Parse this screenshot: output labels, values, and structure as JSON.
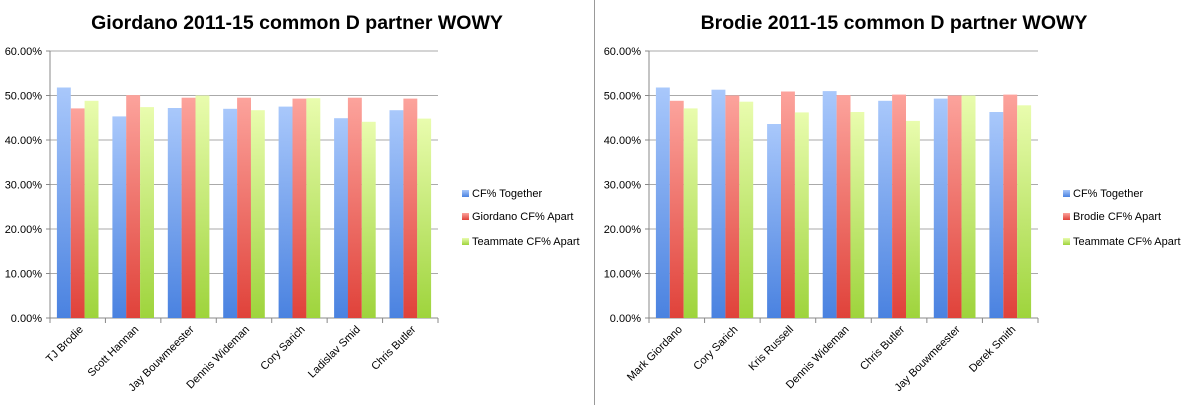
{
  "chart_data": [
    {
      "type": "bar",
      "title": "Giordano 2011-15 common D partner WOWY",
      "categories": [
        "TJ Brodie",
        "Scott Hannan",
        "Jay Bouwmeester",
        "Dennis Wideman",
        "Cory Sarich",
        "Ladislav Smid",
        "Chris Butler"
      ],
      "series": [
        {
          "name": "CF% Together",
          "values": [
            51.8,
            45.3,
            47.2,
            47.0,
            47.5,
            44.9,
            46.7
          ]
        },
        {
          "name": "Giordano CF% Apart",
          "values": [
            47.1,
            50.1,
            49.5,
            49.5,
            49.3,
            49.5,
            49.3
          ]
        },
        {
          "name": "Teammate CF% Apart",
          "values": [
            48.8,
            47.4,
            50.0,
            46.7,
            49.4,
            44.1,
            44.8
          ]
        }
      ],
      "ylim": [
        0,
        60
      ],
      "yticks": [
        "0.00%",
        "10.00%",
        "20.00%",
        "30.00%",
        "40.00%",
        "50.00%",
        "60.00%"
      ],
      "grid": true,
      "legend": "right"
    },
    {
      "type": "bar",
      "title": "Brodie 2011-15 common D partner WOWY",
      "categories": [
        "Mark Giordano",
        "Cory Sarich",
        "Kris Russell",
        "Dennis Wideman",
        "Chris Butler",
        "Jay Bouwmeester",
        "Derek Smith"
      ],
      "series": [
        {
          "name": "CF% Together",
          "values": [
            51.8,
            51.3,
            43.6,
            51.0,
            48.8,
            49.3,
            46.3
          ]
        },
        {
          "name": "Brodie CF% Apart",
          "values": [
            48.8,
            50.0,
            50.9,
            50.1,
            50.2,
            50.0,
            50.2
          ]
        },
        {
          "name": "Teammate CF% Apart",
          "values": [
            47.1,
            48.6,
            46.2,
            46.3,
            44.3,
            50.0,
            47.8
          ]
        }
      ],
      "ylim": [
        0,
        60
      ],
      "yticks": [
        "0.00%",
        "10.00%",
        "20.00%",
        "30.00%",
        "40.00%",
        "50.00%",
        "60.00%"
      ],
      "grid": true,
      "legend": "right"
    }
  ],
  "colors": {
    "series": [
      {
        "top": "#a9c8fb",
        "bottom": "#4a82e0"
      },
      {
        "top": "#fca39c",
        "bottom": "#e0423a"
      },
      {
        "top": "#e9fcae",
        "bottom": "#9ed43c"
      }
    ],
    "grid": "#aaaaaa",
    "axis": "#888888",
    "text": "#000000"
  }
}
